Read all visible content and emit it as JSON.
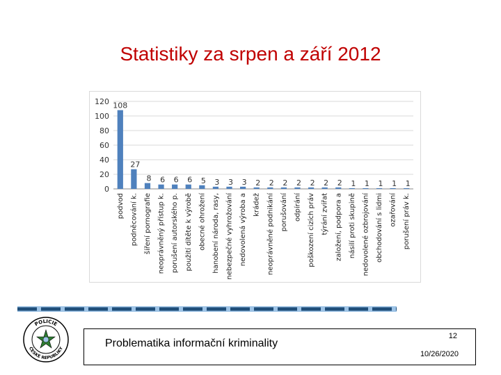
{
  "slide": {
    "title": "Statistiky za srpen a září 2012",
    "footer_text": "Problematika informační kriminality",
    "page_number": "12",
    "date": "10/26/2020"
  },
  "seal": {
    "text_top": "POLICIE",
    "text_bottom": "ČESKÉ REPUBLIKY"
  },
  "colors": {
    "title": "#c00000",
    "bar": "#4f81bd",
    "stripe_dark": "#1f4e79",
    "stripe_light": "#9dc3e6",
    "seal": "#2e7d32"
  },
  "chart_data": {
    "type": "bar",
    "title": "",
    "xlabel": "",
    "ylabel": "",
    "ylim": [
      0,
      120
    ],
    "yticks": [
      0,
      20,
      40,
      60,
      80,
      100,
      120
    ],
    "grid": true,
    "categories": [
      "podvod",
      "podněcování k.",
      "šíření pornografie",
      "neoprávněný přístup k.",
      "porušení autorského p.",
      "použití dítěte k výrobě",
      "obecné ohrožení",
      "hanobení národa, rasy,",
      "nebezpečné vyhrožování",
      "nedovolená výroba a",
      "krádež",
      "neoprávněné podnikání",
      "porušování",
      "odpírání",
      "poškození cizích práv",
      "týrání zvířat",
      "založení, podpora a",
      "násilí proti skupině",
      "nedovolené ozbrojování",
      "obchodování s lidmi",
      "ozařování",
      "porušení práv k."
    ],
    "values": [
      108,
      27,
      8,
      6,
      6,
      6,
      5,
      3,
      3,
      3,
      2,
      2,
      2,
      2,
      2,
      2,
      2,
      1,
      1,
      1,
      1,
      1
    ]
  }
}
